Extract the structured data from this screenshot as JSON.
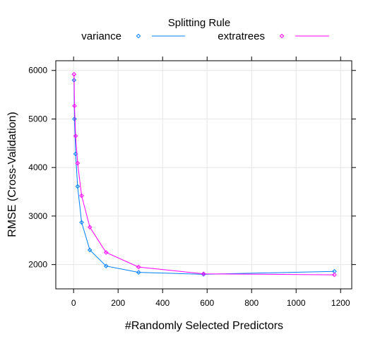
{
  "chart_data": {
    "type": "line",
    "legend": {
      "title": "Splitting Rule",
      "placement": "top"
    },
    "xlabel": "#Randomly Selected Predictors",
    "ylabel": "RMSE (Cross-Validation)",
    "xlim": [
      -80,
      1250
    ],
    "ylim": [
      1500,
      6200
    ],
    "xticks": [
      0,
      200,
      400,
      600,
      800,
      1000,
      1200
    ],
    "yticks": [
      2000,
      3000,
      4000,
      5000,
      6000
    ],
    "xtick_labels": [
      "0",
      "200",
      "400",
      "600",
      "800",
      "1000",
      "1200"
    ],
    "ytick_labels": [
      "2000",
      "3000",
      "4000",
      "5000",
      "6000"
    ],
    "grid": true,
    "series": [
      {
        "name": "variance",
        "color": "#0080ff",
        "marker": "diamond",
        "x": [
          2,
          4,
          9,
          18,
          36,
          73,
          146,
          292,
          584,
          1172
        ],
        "y": [
          5800,
          5000,
          4280,
          3610,
          2870,
          2300,
          1970,
          1840,
          1800,
          1860
        ]
      },
      {
        "name": "extratrees",
        "color": "#ff00ff",
        "marker": "diamond",
        "x": [
          2,
          4,
          9,
          18,
          36,
          73,
          146,
          292,
          584,
          1172
        ],
        "y": [
          5920,
          5270,
          4650,
          4090,
          3420,
          2770,
          2250,
          1950,
          1810,
          1790
        ]
      }
    ]
  }
}
